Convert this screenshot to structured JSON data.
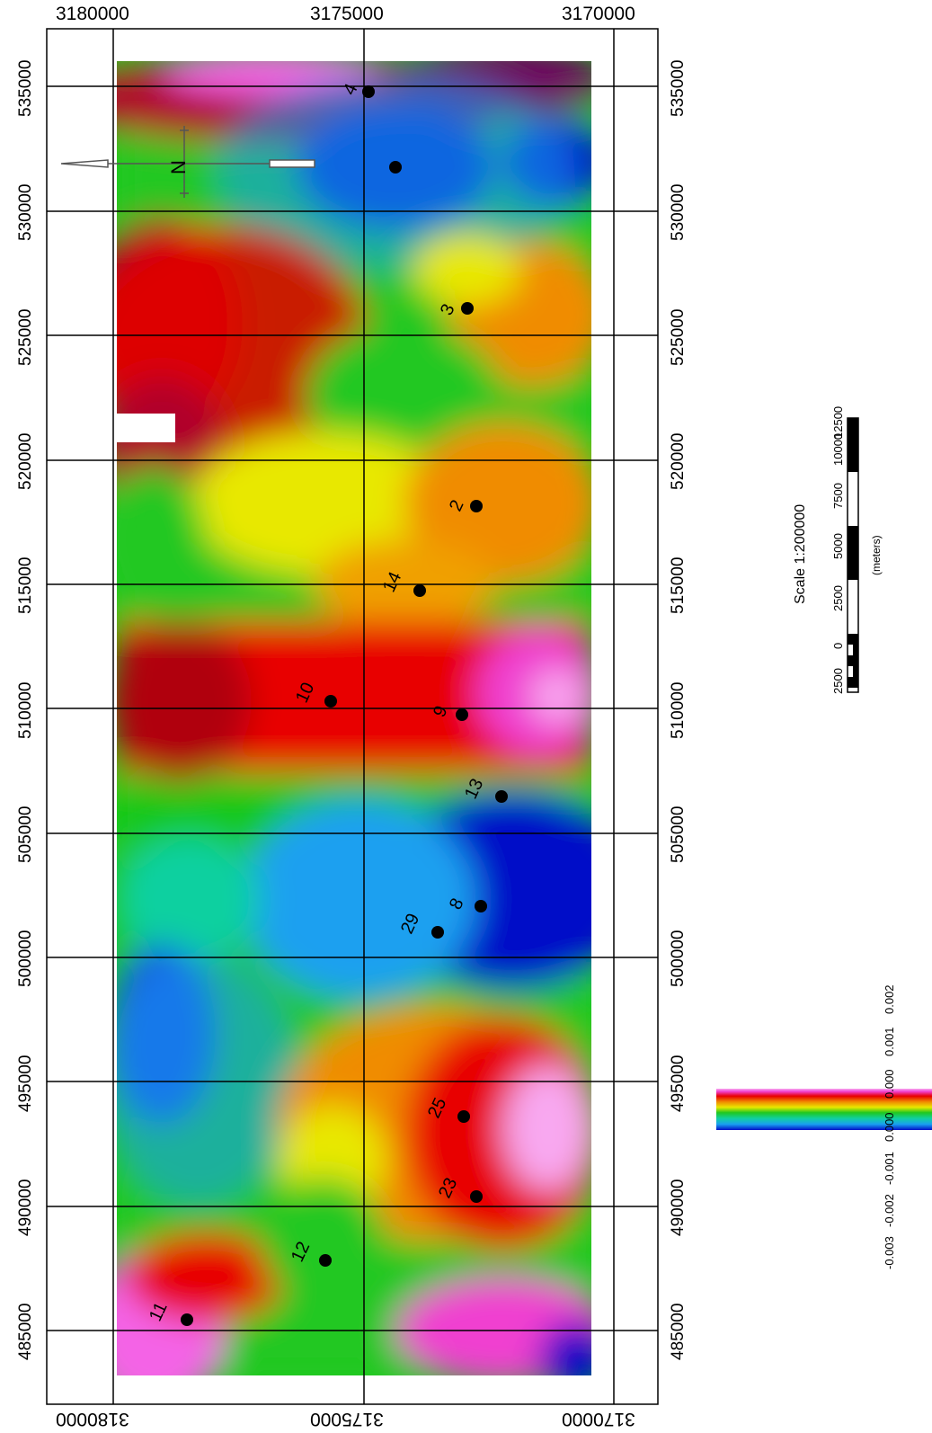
{
  "top_ticks": [
    "3180000",
    "3175000",
    "3170000"
  ],
  "bottom_ticks": [
    "3180000",
    "3175000",
    "3170000"
  ],
  "left_ticks": [
    "535000",
    "530000",
    "525000",
    "520000",
    "515000",
    "510000",
    "505000",
    "500000",
    "495000",
    "490000",
    "485000"
  ],
  "right_ticks": [
    "535000",
    "530000",
    "525000",
    "520000",
    "515000",
    "510000",
    "505000",
    "500000",
    "495000",
    "490000",
    "485000"
  ],
  "points": [
    "4",
    "3",
    "2",
    "14",
    "10",
    "9",
    "13",
    "29",
    "8",
    "25",
    "23",
    "12",
    "11"
  ],
  "north_label": "N",
  "scale": {
    "title": "Scale 1:200000",
    "unit": "(meters)",
    "ticks": [
      "2500",
      "0",
      "2500",
      "5000",
      "7500",
      "10000",
      "12500"
    ]
  },
  "colorbar": {
    "ticks": [
      "-0.003",
      "-0.002",
      "-0.001",
      "0.000",
      "0.000",
      "0.001",
      "0.002"
    ]
  },
  "colors": {
    "deep_blue": "#0010c8",
    "green": "#18c818",
    "yellow": "#e8e800",
    "orange": "#f08c00",
    "red": "#e80000",
    "pink": "#f464e6",
    "maroon": "#a0002a"
  }
}
